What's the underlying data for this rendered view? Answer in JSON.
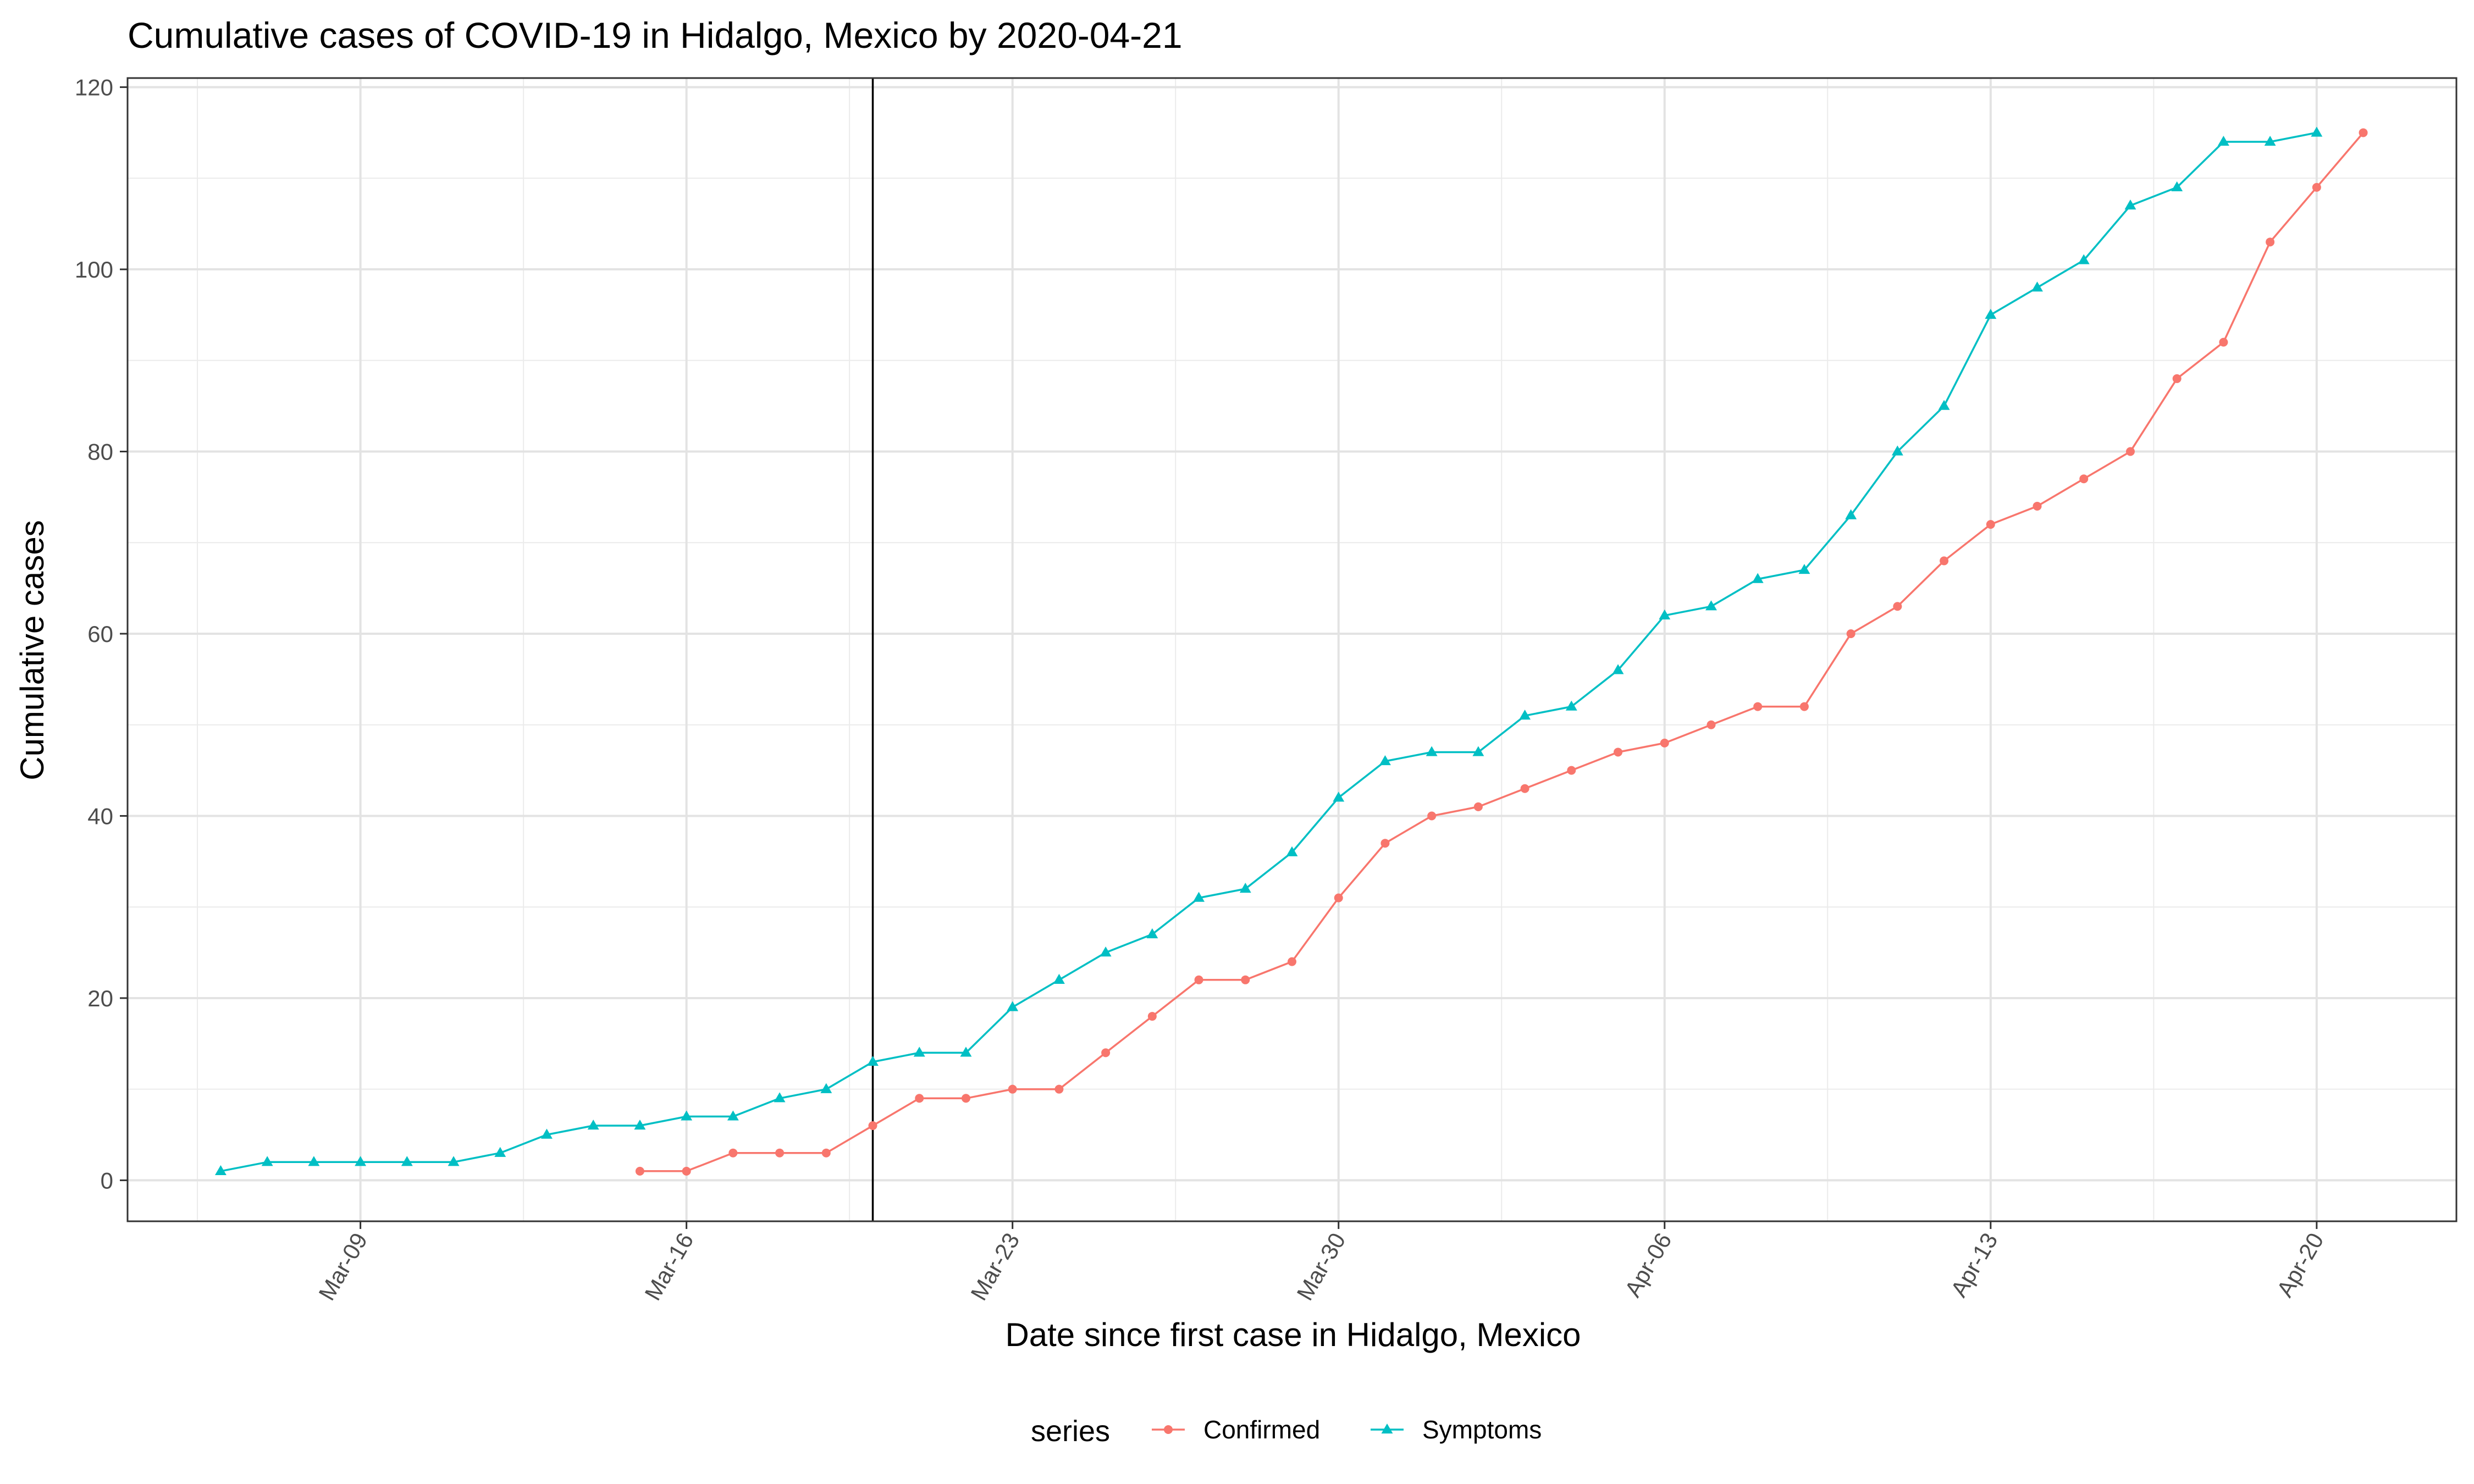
{
  "chart_data": {
    "type": "line",
    "title": "Cumulative cases of COVID-19 in Hidalgo, Mexico by 2020-04-21",
    "xlabel": "Date since first case in Hidalgo, Mexico",
    "ylabel": "Cumulative cases",
    "xlim": [
      "2020-03-04",
      "2020-04-23"
    ],
    "ylim": [
      -4.5,
      121
    ],
    "grid": true,
    "x_ticks": [
      "2020-03-09",
      "2020-03-16",
      "2020-03-23",
      "2020-03-30",
      "2020-04-06",
      "2020-04-13",
      "2020-04-20"
    ],
    "x_tick_labels": [
      "Mar-09",
      "Mar-16",
      "Mar-23",
      "Mar-30",
      "Apr-06",
      "Apr-13",
      "Apr-20"
    ],
    "y_ticks": [
      0,
      20,
      40,
      60,
      80,
      100,
      120
    ],
    "y_tick_labels": [
      "0",
      "20",
      "40",
      "60",
      "80",
      "100",
      "120"
    ],
    "reference_line": {
      "x": "2020-03-20"
    },
    "legend": {
      "title": "series",
      "position": "bottom"
    },
    "series": [
      {
        "name": "Confirmed",
        "color": "#F8766D",
        "marker": "circle",
        "x": [
          "2020-03-15",
          "2020-03-16",
          "2020-03-17",
          "2020-03-18",
          "2020-03-19",
          "2020-03-20",
          "2020-03-21",
          "2020-03-22",
          "2020-03-23",
          "2020-03-24",
          "2020-03-25",
          "2020-03-26",
          "2020-03-27",
          "2020-03-28",
          "2020-03-29",
          "2020-03-30",
          "2020-03-31",
          "2020-04-01",
          "2020-04-02",
          "2020-04-03",
          "2020-04-04",
          "2020-04-05",
          "2020-04-06",
          "2020-04-07",
          "2020-04-08",
          "2020-04-09",
          "2020-04-10",
          "2020-04-11",
          "2020-04-12",
          "2020-04-13",
          "2020-04-14",
          "2020-04-15",
          "2020-04-16",
          "2020-04-17",
          "2020-04-18",
          "2020-04-19",
          "2020-04-20",
          "2020-04-21"
        ],
        "values": [
          1,
          1,
          3,
          3,
          3,
          6,
          9,
          9,
          10,
          10,
          14,
          18,
          22,
          22,
          24,
          31,
          37,
          40,
          41,
          43,
          45,
          47,
          48,
          50,
          52,
          52,
          60,
          63,
          68,
          72,
          74,
          77,
          80,
          88,
          92,
          103,
          109,
          115
        ]
      },
      {
        "name": "Symptoms",
        "color": "#00BFC4",
        "marker": "triangle",
        "x": [
          "2020-03-06",
          "2020-03-07",
          "2020-03-08",
          "2020-03-09",
          "2020-03-10",
          "2020-03-11",
          "2020-03-12",
          "2020-03-13",
          "2020-03-14",
          "2020-03-15",
          "2020-03-16",
          "2020-03-17",
          "2020-03-18",
          "2020-03-19",
          "2020-03-20",
          "2020-03-21",
          "2020-03-22",
          "2020-03-23",
          "2020-03-24",
          "2020-03-25",
          "2020-03-26",
          "2020-03-27",
          "2020-03-28",
          "2020-03-29",
          "2020-03-30",
          "2020-03-31",
          "2020-04-01",
          "2020-04-02",
          "2020-04-03",
          "2020-04-04",
          "2020-04-05",
          "2020-04-06",
          "2020-04-07",
          "2020-04-08",
          "2020-04-09",
          "2020-04-10",
          "2020-04-11",
          "2020-04-12",
          "2020-04-13",
          "2020-04-14",
          "2020-04-15",
          "2020-04-16",
          "2020-04-17",
          "2020-04-18",
          "2020-04-19",
          "2020-04-20"
        ],
        "values": [
          1,
          2,
          2,
          2,
          2,
          2,
          3,
          5,
          6,
          6,
          7,
          7,
          9,
          10,
          13,
          14,
          14,
          19,
          22,
          25,
          27,
          31,
          32,
          36,
          42,
          46,
          47,
          47,
          51,
          52,
          56,
          62,
          63,
          66,
          67,
          73,
          80,
          85,
          95,
          98,
          101,
          107,
          109,
          114,
          114,
          115
        ]
      }
    ]
  }
}
